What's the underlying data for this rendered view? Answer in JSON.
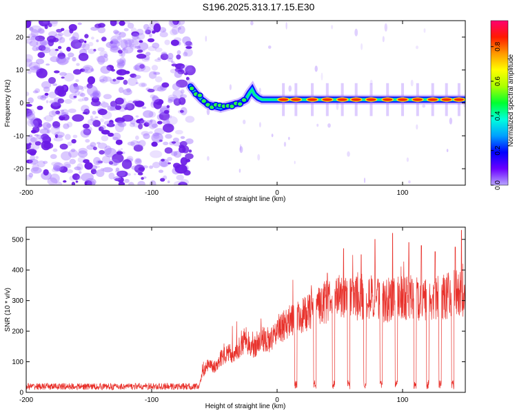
{
  "title": "S196.2025.313.17.15.E30",
  "colors": {
    "snr_line": "#e8302a",
    "blob_noise": "#a070ff",
    "blob_noise_dark": "#6a1ae6"
  },
  "chart_data": [
    {
      "type": "heatmap",
      "title": "S196.2025.313.17.15.E30",
      "xlabel": "Height of straight line (km)",
      "ylabel": "Frequency (Hz)",
      "xlim": [
        -200,
        150
      ],
      "ylim": [
        -25,
        25
      ],
      "xticks": [
        -200,
        -100,
        0,
        100
      ],
      "xtick_labels": [
        "-200",
        "-100",
        "0",
        "100"
      ],
      "yticks": [
        20,
        10,
        0,
        -10,
        -20
      ],
      "ytick_labels": [
        "20",
        "10",
        "0",
        "-10",
        "-20"
      ],
      "noise_region_x": [
        -200,
        -69
      ],
      "signal_track": {
        "x": [
          -69,
          -65,
          -60,
          -55,
          -50,
          -45,
          -40,
          -35,
          -30,
          -25,
          -22,
          -20,
          -18,
          -15,
          -12,
          -8,
          0,
          150
        ],
        "y": [
          5,
          3,
          1,
          -0.5,
          -1,
          -1.5,
          -1,
          -0.5,
          0,
          1,
          3,
          4,
          2.5,
          1.5,
          1,
          1,
          1,
          1
        ]
      },
      "hot_spots_x": [
        5,
        15,
        28,
        40,
        52,
        63,
        75,
        88,
        100,
        112,
        124,
        135,
        145
      ],
      "colorbar": {
        "label": "Normalized spectral amplitude",
        "range": [
          0,
          0.95
        ],
        "ticks": [
          0.0,
          0.2,
          0.4,
          0.6,
          0.8
        ],
        "tick_labels": [
          "0.0",
          "0.2",
          "0.4",
          "0.6",
          "0.8"
        ]
      }
    },
    {
      "type": "line",
      "xlabel": "Height of straight line (km)",
      "ylabel": "SNR (10 * v/v)",
      "xlim": [
        -200,
        150
      ],
      "ylim": [
        0,
        540
      ],
      "xticks": [
        -200,
        -100,
        0,
        100
      ],
      "xtick_labels": [
        "-200",
        "-100",
        "0",
        "100"
      ],
      "yticks": [
        0,
        100,
        200,
        300,
        400,
        500
      ],
      "ytick_labels": [
        "0",
        "100",
        "200",
        "300",
        "400",
        "500"
      ],
      "baseline_level": 20,
      "envelope": {
        "x": [
          -200,
          -62,
          -60,
          -55,
          -50,
          -45,
          -40,
          -35,
          -30,
          -25,
          -20,
          -15,
          -10,
          -5,
          0,
          10,
          20,
          30,
          40,
          50,
          60,
          70,
          80,
          90,
          100,
          110,
          120,
          130,
          140,
          150
        ],
        "y": [
          18,
          20,
          60,
          100,
          90,
          120,
          140,
          135,
          160,
          190,
          150,
          180,
          190,
          180,
          220,
          250,
          270,
          300,
          320,
          350,
          330,
          340,
          330,
          320,
          340,
          330,
          320,
          330,
          350,
          340
        ]
      },
      "dips_x": [
        15,
        30,
        45,
        57,
        70,
        83,
        95,
        110,
        120,
        130,
        140
      ],
      "peaks": [
        {
          "x": 40,
          "y": 390
        },
        {
          "x": 53,
          "y": 470
        },
        {
          "x": 67,
          "y": 450
        },
        {
          "x": 78,
          "y": 500
        },
        {
          "x": 92,
          "y": 520
        },
        {
          "x": 105,
          "y": 490
        },
        {
          "x": 115,
          "y": 480
        },
        {
          "x": 126,
          "y": 460
        },
        {
          "x": 142,
          "y": 475
        },
        {
          "x": 147,
          "y": 530
        }
      ]
    }
  ]
}
